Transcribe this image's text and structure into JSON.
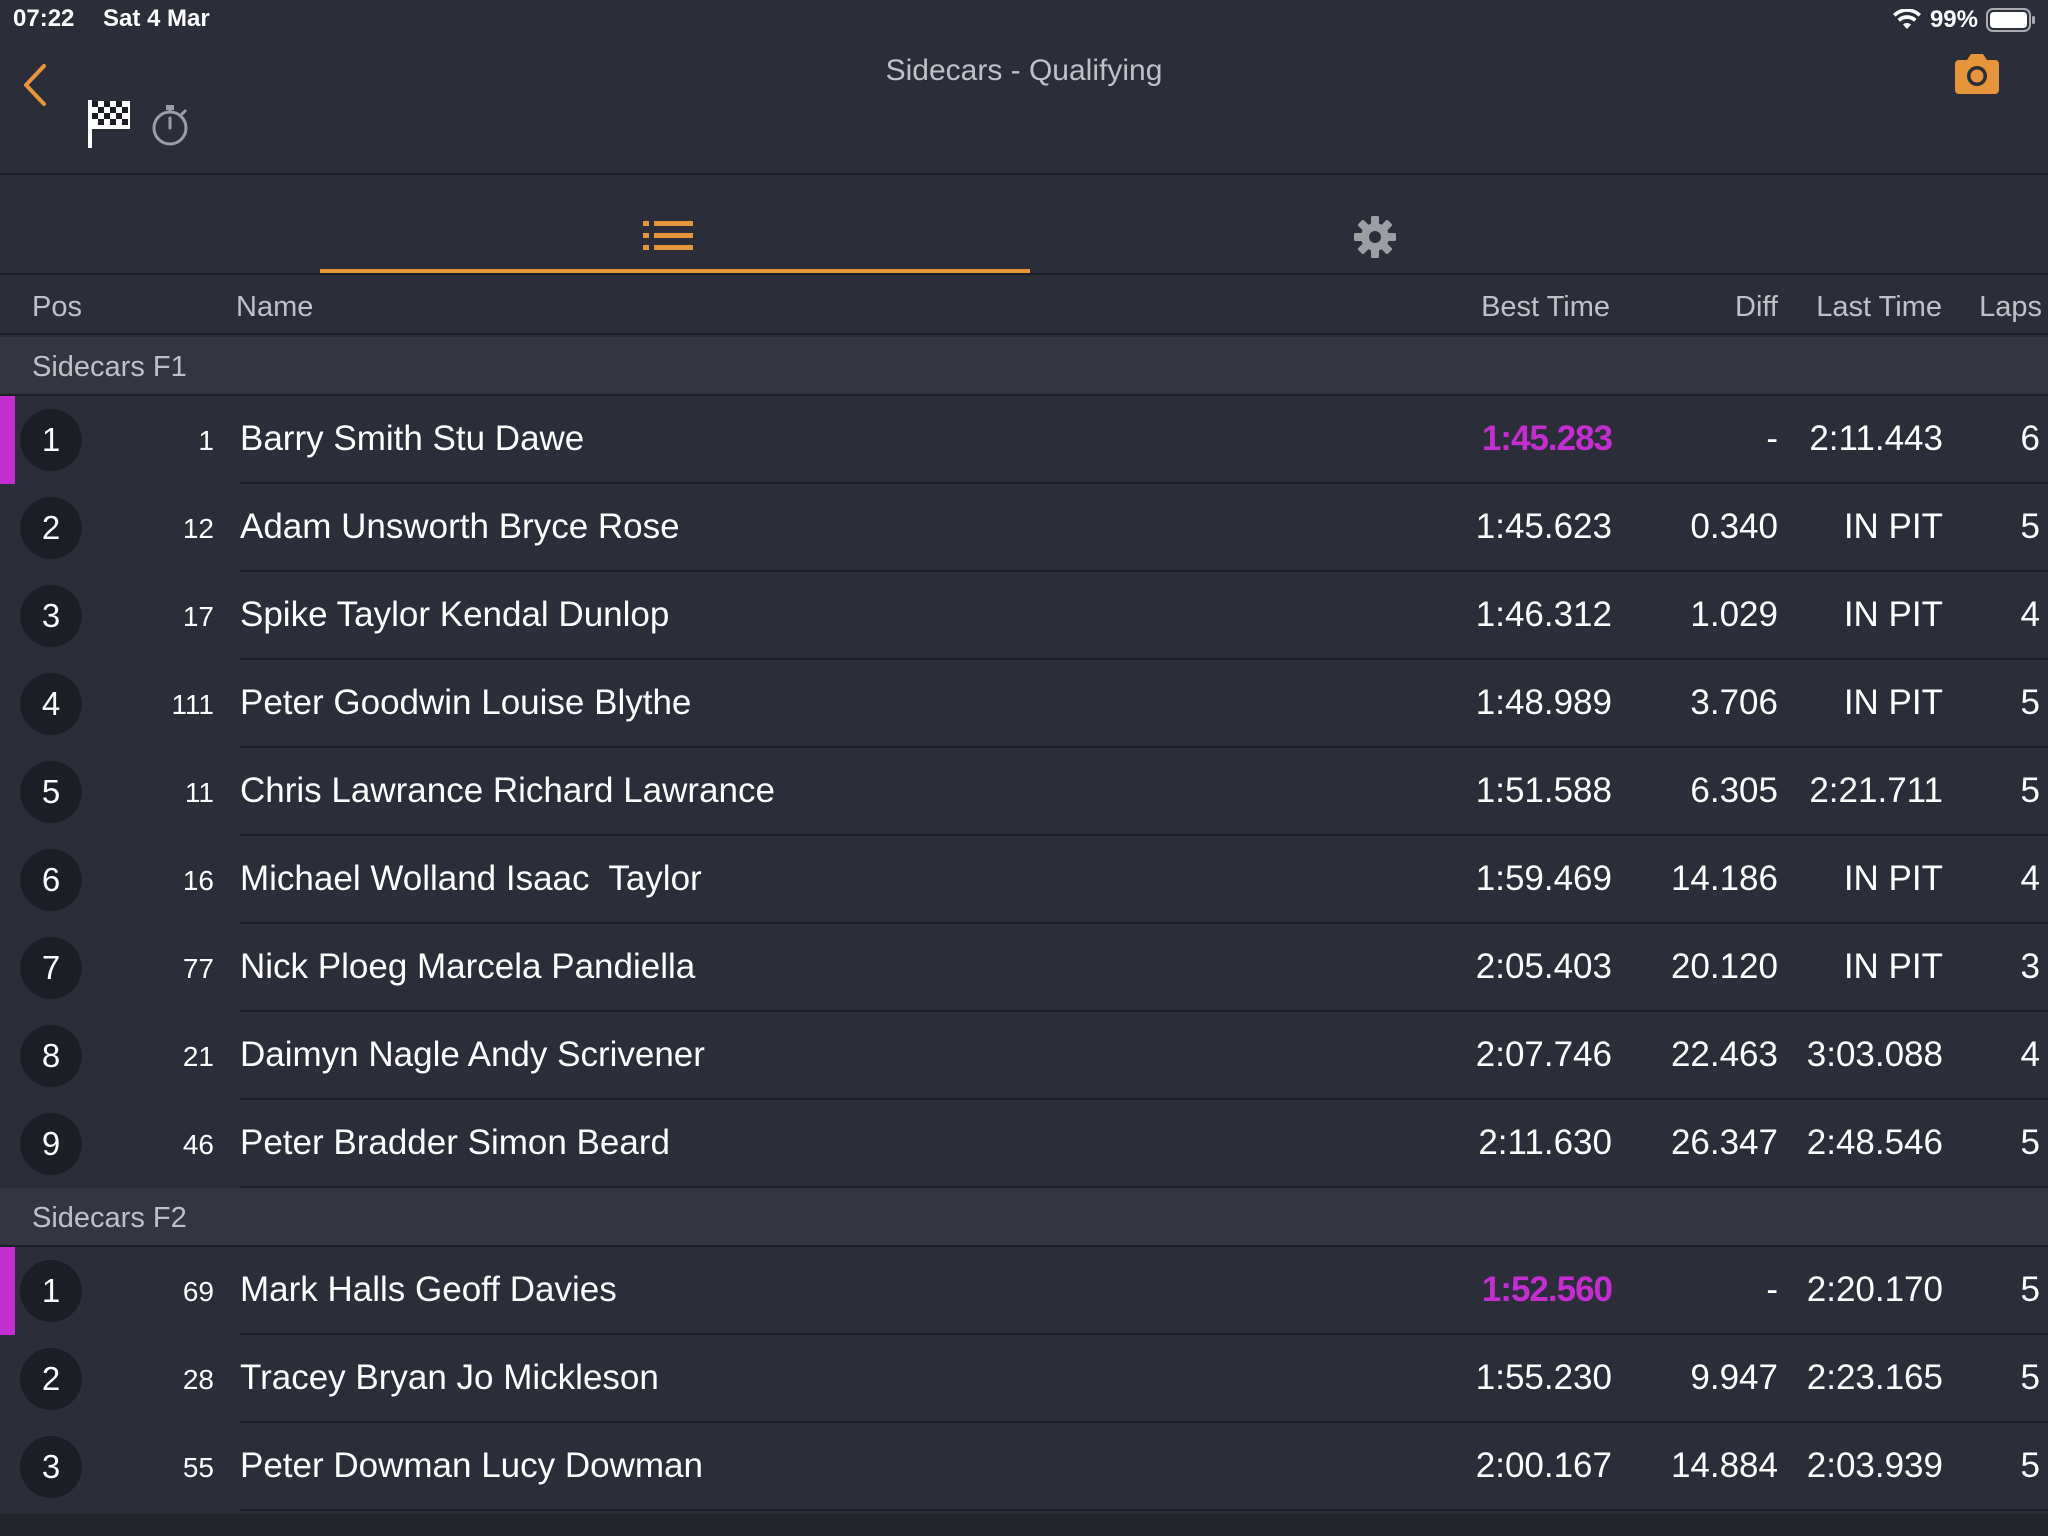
{
  "status": {
    "time": "07:22",
    "date": "Sat 4 Mar",
    "battery": "99%"
  },
  "header": {
    "title": "Sidecars - Qualifying"
  },
  "columns": {
    "pos": "Pos",
    "name": "Name",
    "best": "Best Time",
    "diff": "Diff",
    "last": "Last Time",
    "laps": "Laps"
  },
  "colors": {
    "accent": "#e6953a",
    "fastest": "#c42dcf",
    "background": "#2b2e38"
  },
  "icons": [
    "back-chevron-icon",
    "checkered-flag-icon",
    "stopwatch-icon",
    "camera-icon",
    "list-icon",
    "gear-icon",
    "wifi-icon",
    "battery-icon"
  ],
  "groups": [
    {
      "label": "Sidecars F1",
      "rows": [
        {
          "pos": "1",
          "num": "1",
          "name": "Barry Smith Stu Dawe",
          "best": "1:45.283",
          "diff": "-",
          "last": "2:11.443",
          "laps": "6",
          "fastest": true
        },
        {
          "pos": "2",
          "num": "12",
          "name": "Adam Unsworth Bryce Rose",
          "best": "1:45.623",
          "diff": "0.340",
          "last": "IN PIT",
          "laps": "5",
          "fastest": false
        },
        {
          "pos": "3",
          "num": "17",
          "name": "Spike Taylor Kendal Dunlop",
          "best": "1:46.312",
          "diff": "1.029",
          "last": "IN PIT",
          "laps": "4",
          "fastest": false
        },
        {
          "pos": "4",
          "num": "111",
          "name": "Peter Goodwin Louise Blythe",
          "best": "1:48.989",
          "diff": "3.706",
          "last": "IN PIT",
          "laps": "5",
          "fastest": false
        },
        {
          "pos": "5",
          "num": "11",
          "name": "Chris Lawrance Richard Lawrance",
          "best": "1:51.588",
          "diff": "6.305",
          "last": "2:21.711",
          "laps": "5",
          "fastest": false
        },
        {
          "pos": "6",
          "num": "16",
          "name": "Michael Wolland Isaac  Taylor",
          "best": "1:59.469",
          "diff": "14.186",
          "last": "IN PIT",
          "laps": "4",
          "fastest": false
        },
        {
          "pos": "7",
          "num": "77",
          "name": "Nick Ploeg Marcela Pandiella",
          "best": "2:05.403",
          "diff": "20.120",
          "last": "IN PIT",
          "laps": "3",
          "fastest": false
        },
        {
          "pos": "8",
          "num": "21",
          "name": "Daimyn Nagle Andy Scrivener",
          "best": "2:07.746",
          "diff": "22.463",
          "last": "3:03.088",
          "laps": "4",
          "fastest": false
        },
        {
          "pos": "9",
          "num": "46",
          "name": "Peter Bradder Simon Beard",
          "best": "2:11.630",
          "diff": "26.347",
          "last": "2:48.546",
          "laps": "5",
          "fastest": false
        }
      ]
    },
    {
      "label": "Sidecars F2",
      "rows": [
        {
          "pos": "1",
          "num": "69",
          "name": "Mark Halls Geoff Davies",
          "best": "1:52.560",
          "diff": "-",
          "last": "2:20.170",
          "laps": "5",
          "fastest": true
        },
        {
          "pos": "2",
          "num": "28",
          "name": "Tracey Bryan Jo Mickleson",
          "best": "1:55.230",
          "diff": "9.947",
          "last": "2:23.165",
          "laps": "5",
          "fastest": false
        },
        {
          "pos": "3",
          "num": "55",
          "name": "Peter Dowman Lucy Dowman",
          "best": "2:00.167",
          "diff": "14.884",
          "last": "2:03.939",
          "laps": "5",
          "fastest": false
        }
      ]
    }
  ]
}
